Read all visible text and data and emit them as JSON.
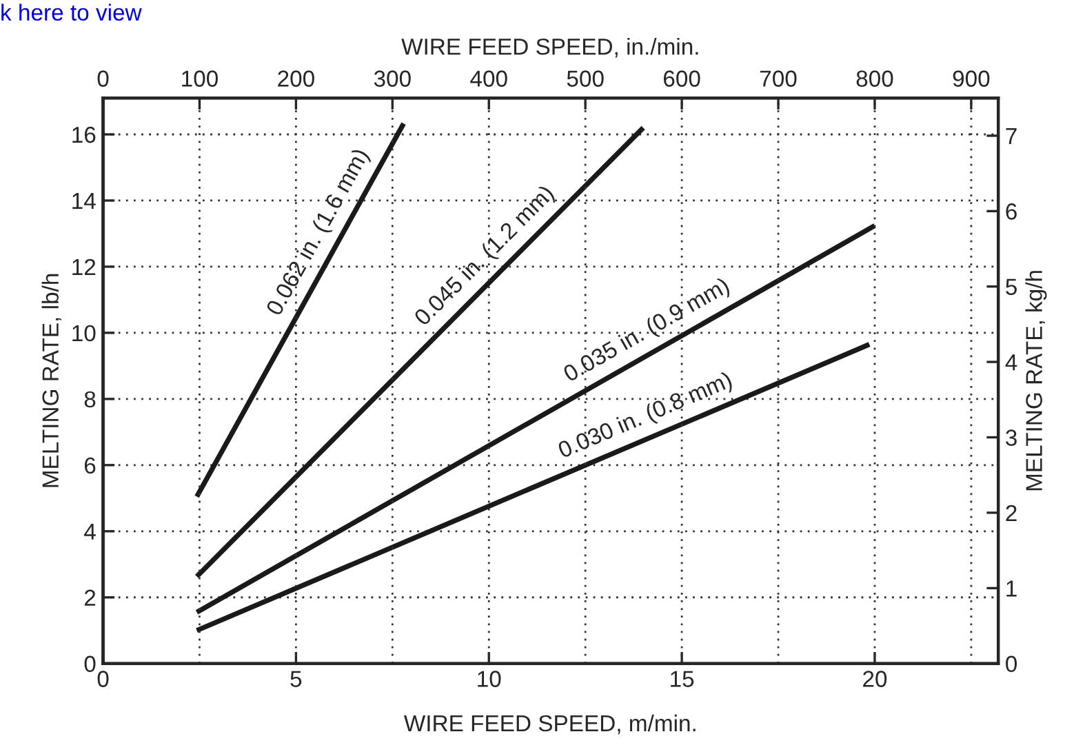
{
  "chart_data": {
    "type": "line",
    "xlabel": "WIRE FEED SPEED, m/min.",
    "x2label": "WIRE FEED SPEED, in./min.",
    "ylabel": "MELTING RATE, lb/h",
    "y2label": "MELTING RATE, kg/h",
    "xlim": [
      0,
      23.2
    ],
    "xticks": [
      0,
      5,
      10,
      15,
      20
    ],
    "x2lim": [
      0,
      928
    ],
    "x2ticks": [
      0,
      100,
      200,
      300,
      400,
      500,
      600,
      700,
      800,
      900
    ],
    "ylim": [
      0,
      17.1
    ],
    "yticks": [
      0,
      2,
      4,
      6,
      8,
      10,
      12,
      14,
      16
    ],
    "y2lim": [
      0,
      7.5
    ],
    "y2ticks": [
      0,
      1,
      2,
      3,
      4,
      5,
      6,
      7
    ],
    "grid": true,
    "legend": false,
    "marker": "none",
    "line_style": "solid",
    "series": [
      {
        "name": "0.062 in. (1.6 mm)",
        "color": "#1a1a1a",
        "x": [
          2.43,
          7.79
        ],
        "values": [
          5.05,
          16.33
        ]
      },
      {
        "name": "0.045 in. (1.2 mm)",
        "color": "#1a1a1a",
        "x": [
          2.43,
          14.0
        ],
        "values": [
          2.63,
          16.2
        ]
      },
      {
        "name": "0.035 in. (0.9 mm)",
        "color": "#1a1a1a",
        "x": [
          2.43,
          20.0
        ],
        "values": [
          1.55,
          13.24
        ]
      },
      {
        "name": "0.030 in. (0.8 mm)",
        "color": "#1a1a1a",
        "x": [
          2.43,
          19.86
        ],
        "values": [
          1.0,
          9.65
        ]
      }
    ],
    "annotations": [
      "k here to view"
    ]
  }
}
